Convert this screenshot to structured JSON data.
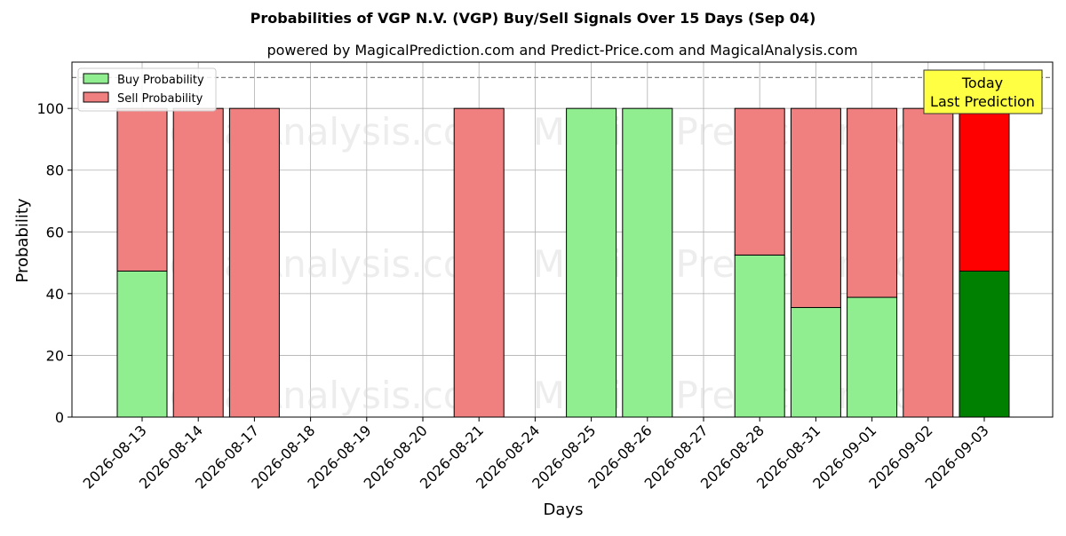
{
  "chart_data": {
    "type": "bar",
    "title": "Probabilities of VGP N.V. (VGP) Buy/Sell Signals Over 15 Days (Sep 04)",
    "subtitle": "powered by MagicalPrediction.com and Predict-Price.com and MagicalAnalysis.com",
    "xlabel": "Days",
    "ylabel": "Probability",
    "ylim": [
      0,
      115
    ],
    "yticks": [
      "0",
      "20",
      "40",
      "60",
      "80",
      "100"
    ],
    "grid": true,
    "legend_position": "top-left",
    "reference_line": 110,
    "categories": [
      "2026-08-13",
      "2026-08-14",
      "2026-08-17",
      "2026-08-18",
      "2026-08-19",
      "2026-08-20",
      "2026-08-21",
      "2026-08-24",
      "2026-08-25",
      "2026-08-26",
      "2026-08-27",
      "2026-08-28",
      "2026-08-31",
      "2026-09-01",
      "2026-09-02",
      "2026-09-03"
    ],
    "series": [
      {
        "name": "Buy Probability",
        "values": [
          47.3,
          0,
          0,
          null,
          null,
          null,
          0,
          null,
          100,
          100,
          null,
          52.5,
          35.5,
          38.8,
          0,
          47.3
        ],
        "color": "#90ee90",
        "today_color": "#008000"
      },
      {
        "name": "Sell Probability",
        "values": [
          52.7,
          100,
          100,
          null,
          null,
          null,
          100,
          null,
          0,
          0,
          null,
          47.5,
          64.5,
          61.2,
          100,
          52.7
        ],
        "color": "#f08080",
        "today_color": "#ff0000"
      }
    ],
    "annotation": {
      "line1": "Today",
      "line2": "Last Prediction",
      "bg": "#ffff44"
    },
    "watermarks": [
      "MagicalAnalysis.com",
      "MagicalPrediction.com"
    ]
  }
}
